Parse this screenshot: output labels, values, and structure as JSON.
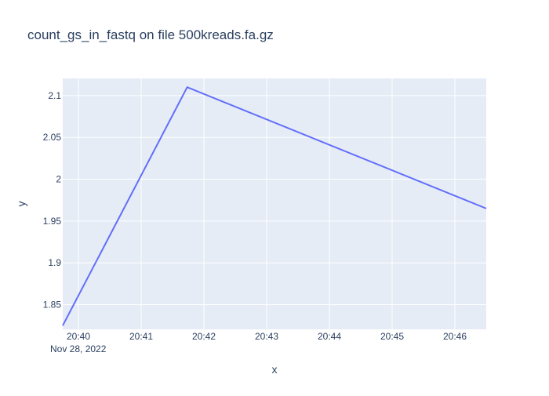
{
  "colors": {
    "plot_bg": "#e5ecf6",
    "grid": "#ffffff",
    "line": "#636efa",
    "text": "#2a3f5f"
  },
  "chart_data": {
    "type": "line",
    "title": "count_gs_in_fastq on file 500kreads.fa.gz",
    "xlabel": "x",
    "ylabel": "y",
    "x_date_label": "Nov 28, 2022",
    "x_axis_type": "time",
    "xlim": [
      "2022-11-28 20:39:45",
      "2022-11-28 20:46:30"
    ],
    "ylim": [
      1.8205,
      2.1205
    ],
    "x_ticks": [
      "20:40",
      "20:41",
      "20:42",
      "20:43",
      "20:44",
      "20:45",
      "20:46"
    ],
    "y_ticks": [
      "1.85",
      "1.9",
      "1.95",
      "2",
      "2.05",
      "2.1"
    ],
    "grid": true,
    "series": [
      {
        "points": [
          {
            "x": "2022-11-28 20:39:45",
            "y": 1.825
          },
          {
            "x": "2022-11-28 20:41:44",
            "y": 2.11
          },
          {
            "x": "2022-11-28 20:46:30",
            "y": 1.965
          }
        ]
      }
    ]
  }
}
